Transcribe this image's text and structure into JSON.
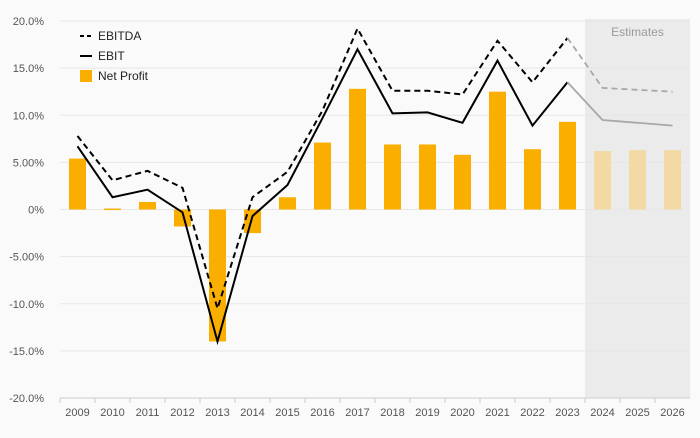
{
  "chart_data": {
    "type": "bar+line",
    "categories": [
      "2009",
      "2010",
      "2011",
      "2012",
      "2013",
      "2014",
      "2015",
      "2016",
      "2017",
      "2018",
      "2019",
      "2020",
      "2021",
      "2022",
      "2023",
      "2024",
      "2025",
      "2026"
    ],
    "estimates_from_index": 15,
    "estimates_label": "Estimates",
    "y_ticks": [
      "20.0%",
      "15.0%",
      "10.0%",
      "5.00%",
      "0%",
      "-5.00%",
      "-10.0%",
      "-15.0%",
      "-20.0%"
    ],
    "ylim": [
      -20,
      20
    ],
    "grid": true,
    "legend_position": "top-left",
    "series": [
      {
        "name": "EBITDA",
        "kind": "line",
        "style": "dashed",
        "values": [
          7.8,
          3.1,
          4.1,
          2.3,
          -10.5,
          1.3,
          4.0,
          10.5,
          19.2,
          12.6,
          12.6,
          12.2,
          17.9,
          13.5,
          18.2,
          12.9,
          12.7,
          12.5
        ]
      },
      {
        "name": "EBIT",
        "kind": "line",
        "style": "solid",
        "values": [
          6.7,
          1.3,
          2.1,
          -0.3,
          -14.0,
          -0.7,
          2.6,
          9.7,
          17.0,
          10.2,
          10.3,
          9.2,
          15.8,
          8.9,
          13.5,
          9.5,
          9.2,
          8.9
        ]
      },
      {
        "name": "Net Profit",
        "kind": "bar",
        "values": [
          5.4,
          0.1,
          0.8,
          -1.8,
          -14.0,
          -2.5,
          1.3,
          7.1,
          12.8,
          6.9,
          6.9,
          5.8,
          12.5,
          6.4,
          9.3,
          6.2,
          6.3,
          6.3
        ]
      }
    ]
  },
  "colors": {
    "bar": "#f9ae00",
    "bar_estimate": "#f3d9a3",
    "line": "#000000",
    "line_estimate": "#a8a8a8",
    "estimate_band": "#ebebeb",
    "grid": "#e6e6e6",
    "axis_text": "#555555",
    "estimate_label": "#9a9a9a"
  }
}
